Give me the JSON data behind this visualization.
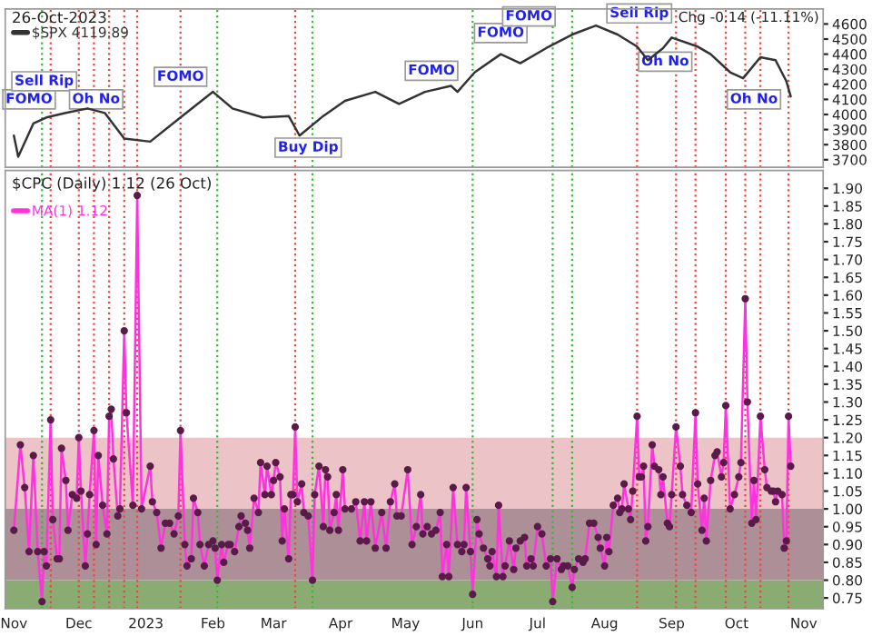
{
  "chart_data": [
    {
      "type": "line",
      "title": "26-Oct-2023",
      "subtitle": "Chg -0.14 (-11.11%)",
      "legend": "top left",
      "tick_labels": "y",
      "xlim": [
        "2022-10-28",
        "2023-11-10"
      ],
      "ylim": [
        3650,
        4700
      ],
      "yticks": [
        3700,
        3800,
        3900,
        4000,
        4100,
        4200,
        4300,
        4400,
        4500,
        4600
      ],
      "series": [
        {
          "name": "$SPX 4119.89",
          "color": "#333333",
          "x": [
            "2022-11-01",
            "2022-11-03",
            "2022-11-10",
            "2022-11-16",
            "2022-11-25",
            "2022-12-05",
            "2022-12-13",
            "2022-12-22",
            "2023-01-03",
            "2023-01-17",
            "2023-02-01",
            "2023-02-10",
            "2023-02-24",
            "2023-03-08",
            "2023-03-13",
            "2023-03-24",
            "2023-04-03",
            "2023-04-17",
            "2023-04-28",
            "2023-05-10",
            "2023-05-22",
            "2023-05-25",
            "2023-06-02",
            "2023-06-14",
            "2023-06-23",
            "2023-07-05",
            "2023-07-17",
            "2023-07-28",
            "2023-08-07",
            "2023-08-16",
            "2023-08-21",
            "2023-08-28",
            "2023-09-01",
            "2023-09-13",
            "2023-09-19",
            "2023-09-28",
            "2023-10-04",
            "2023-10-12",
            "2023-10-19",
            "2023-10-24",
            "2023-10-26"
          ],
          "values": [
            3860,
            3720,
            3940,
            3980,
            4010,
            4040,
            4010,
            3840,
            3820,
            3980,
            4150,
            4040,
            3980,
            3990,
            3860,
            3990,
            4090,
            4150,
            4070,
            4150,
            4190,
            4150,
            4280,
            4400,
            4340,
            4440,
            4530,
            4590,
            4530,
            4450,
            4360,
            4440,
            4510,
            4450,
            4400,
            4280,
            4240,
            4380,
            4360,
            4220,
            4119.89
          ]
        }
      ],
      "annotations": [
        {
          "text": "FOMO",
          "x": "2022-11-08",
          "y": 4100
        },
        {
          "text": "Sell Rip",
          "x": "2022-11-15",
          "y": 4220
        },
        {
          "text": "Oh No",
          "x": "2022-12-09",
          "y": 4100
        },
        {
          "text": "FOMO",
          "x": "2023-01-17",
          "y": 4250
        },
        {
          "text": "Buy Dip",
          "x": "2023-03-17",
          "y": 3780
        },
        {
          "text": "FOMO",
          "x": "2023-05-13",
          "y": 4290
        },
        {
          "text": "FOMO",
          "x": "2023-06-14",
          "y": 4540
        },
        {
          "text": "FOMO",
          "x": "2023-06-27",
          "y": 4650
        },
        {
          "text": "Sell Rip",
          "x": "2023-08-17",
          "y": 4670
        },
        {
          "text": "Oh No",
          "x": "2023-08-29",
          "y": 4350
        },
        {
          "text": "Oh No",
          "x": "2023-10-09",
          "y": 4100
        }
      ],
      "ref_lines": [
        {
          "axis": "x",
          "value": "2022-11-14",
          "color": "#33bb33",
          "line_style": "dotted"
        },
        {
          "axis": "x",
          "value": "2022-11-18",
          "color": "#ee4444",
          "line_style": "dotted"
        },
        {
          "axis": "x",
          "value": "2022-12-01",
          "color": "#ee4444",
          "line_style": "dotted"
        },
        {
          "axis": "x",
          "value": "2022-12-08",
          "color": "#ee4444",
          "line_style": "dotted"
        },
        {
          "axis": "x",
          "value": "2022-12-15",
          "color": "#ee4444",
          "line_style": "dotted"
        },
        {
          "axis": "x",
          "value": "2022-12-22",
          "color": "#ee4444",
          "line_style": "dotted"
        },
        {
          "axis": "x",
          "value": "2022-12-28",
          "color": "#ee4444",
          "line_style": "dotted"
        },
        {
          "axis": "x",
          "value": "2023-01-17",
          "color": "#ee4444",
          "line_style": "dotted"
        },
        {
          "axis": "x",
          "value": "2023-02-03",
          "color": "#33bb33",
          "line_style": "dotted"
        },
        {
          "axis": "x",
          "value": "2023-03-11",
          "color": "#ee4444",
          "line_style": "dotted"
        },
        {
          "axis": "x",
          "value": "2023-03-19",
          "color": "#33bb33",
          "line_style": "dotted"
        },
        {
          "axis": "x",
          "value": "2023-06-01",
          "color": "#33bb33",
          "line_style": "dotted"
        },
        {
          "axis": "x",
          "value": "2023-07-08",
          "color": "#33bb33",
          "line_style": "dotted"
        },
        {
          "axis": "x",
          "value": "2023-07-17",
          "color": "#33bb33",
          "line_style": "dotted"
        },
        {
          "axis": "x",
          "value": "2023-08-16",
          "color": "#ee4444",
          "line_style": "dotted"
        },
        {
          "axis": "x",
          "value": "2023-09-03",
          "color": "#ee4444",
          "line_style": "dotted"
        },
        {
          "axis": "x",
          "value": "2023-09-12",
          "color": "#ee4444",
          "line_style": "dotted"
        },
        {
          "axis": "x",
          "value": "2023-09-26",
          "color": "#ee4444",
          "line_style": "dotted"
        },
        {
          "axis": "x",
          "value": "2023-10-05",
          "color": "#ee4444",
          "line_style": "dotted"
        },
        {
          "axis": "x",
          "value": "2023-10-12",
          "color": "#ee4444",
          "line_style": "dotted"
        },
        {
          "axis": "x",
          "value": "2023-10-25",
          "color": "#ee4444",
          "line_style": "dotted"
        }
      ]
    },
    {
      "type": "line",
      "title": "$CPC (Daily) 1.12 (26 Oct)",
      "legend": "top left",
      "marker": "circle",
      "xlim": [
        "2022-10-28",
        "2023-11-10"
      ],
      "ylim": [
        0.72,
        1.95
      ],
      "xticks": [
        {
          "value": "2022-11-01",
          "label": "Nov"
        },
        {
          "value": "2022-12-01",
          "label": "Dec"
        },
        {
          "value": "2023-01-01",
          "label": "2023"
        },
        {
          "value": "2023-02-01",
          "label": "Feb"
        },
        {
          "value": "2023-03-01",
          "label": "Mar"
        },
        {
          "value": "2023-04-01",
          "label": "Apr"
        },
        {
          "value": "2023-05-01",
          "label": "May"
        },
        {
          "value": "2023-06-01",
          "label": "Jun"
        },
        {
          "value": "2023-07-01",
          "label": "Jul"
        },
        {
          "value": "2023-08-01",
          "label": "Aug"
        },
        {
          "value": "2023-09-01",
          "label": "Sep"
        },
        {
          "value": "2023-10-01",
          "label": "Oct"
        },
        {
          "value": "2023-11-01",
          "label": "Nov"
        }
      ],
      "yticks": [
        {
          "value": 0.75,
          "label": "0.75"
        },
        {
          "value": 0.8,
          "label": "0.80"
        },
        {
          "value": 0.85,
          "label": "0.85"
        },
        {
          "value": 0.9,
          "label": "0.90"
        },
        {
          "value": 0.95,
          "label": "0.95"
        },
        {
          "value": 1.0,
          "label": "1.00"
        },
        {
          "value": 1.05,
          "label": "1.05"
        },
        {
          "value": 1.1,
          "label": "1.10"
        },
        {
          "value": 1.15,
          "label": "1.15"
        },
        {
          "value": 1.2,
          "label": "1.20"
        },
        {
          "value": 1.25,
          "label": "1.25"
        },
        {
          "value": 1.3,
          "label": "1.30"
        },
        {
          "value": 1.35,
          "label": "1.35"
        },
        {
          "value": 1.4,
          "label": "1.40"
        },
        {
          "value": 1.45,
          "label": "1.45"
        },
        {
          "value": 1.5,
          "label": "1.50"
        },
        {
          "value": 1.55,
          "label": "1.55"
        },
        {
          "value": 1.6,
          "label": "1.60"
        },
        {
          "value": 1.65,
          "label": "1.65"
        },
        {
          "value": 1.7,
          "label": "1.70"
        },
        {
          "value": 1.75,
          "label": "1.75"
        },
        {
          "value": 1.8,
          "label": "1.80"
        },
        {
          "value": 1.85,
          "label": "1.85"
        },
        {
          "value": 1.9,
          "label": "1.90"
        }
      ],
      "bands": [
        {
          "axis": "y",
          "from": 0.72,
          "to": 0.8,
          "color": "#8aab72"
        },
        {
          "axis": "y",
          "from": 0.8,
          "to": 1.0,
          "color": "#ad9097"
        },
        {
          "axis": "y",
          "from": 1.0,
          "to": 1.2,
          "color": "#ecc3c7"
        }
      ],
      "series": [
        {
          "name": "MA(1) 1.12",
          "color": "#ff33dd",
          "x": [
            "2022-11-01",
            "2022-11-04",
            "2022-11-06",
            "2022-11-08",
            "2022-11-10",
            "2022-11-12",
            "2022-11-14",
            "2022-11-15",
            "2022-11-16",
            "2022-11-18",
            "2022-11-19",
            "2022-11-21",
            "2022-11-22",
            "2022-11-23",
            "2022-11-25",
            "2022-11-26",
            "2022-11-28",
            "2022-11-30",
            "2022-12-01",
            "2022-12-02",
            "2022-12-04",
            "2022-12-05",
            "2022-12-06",
            "2022-12-08",
            "2022-12-09",
            "2022-12-10",
            "2022-12-12",
            "2022-12-14",
            "2022-12-15",
            "2022-12-16",
            "2022-12-17",
            "2022-12-19",
            "2022-12-20",
            "2022-12-22",
            "2022-12-23",
            "2022-12-26",
            "2022-12-28",
            "2022-12-30",
            "2023-01-03",
            "2023-01-04",
            "2023-01-06",
            "2023-01-08",
            "2023-01-10",
            "2023-01-12",
            "2023-01-14",
            "2023-01-16",
            "2023-01-17",
            "2023-01-19",
            "2023-01-20",
            "2023-01-22",
            "2023-01-23",
            "2023-01-25",
            "2023-01-26",
            "2023-01-28",
            "2023-01-30",
            "2023-02-01",
            "2023-02-02",
            "2023-02-03",
            "2023-02-05",
            "2023-02-06",
            "2023-02-08",
            "2023-02-09",
            "2023-02-11",
            "2023-02-13",
            "2023-02-14",
            "2023-02-16",
            "2023-02-17",
            "2023-02-18",
            "2023-02-20",
            "2023-02-22",
            "2023-02-23",
            "2023-02-25",
            "2023-02-26",
            "2023-02-28",
            "2023-03-01",
            "2023-03-02",
            "2023-03-04",
            "2023-03-05",
            "2023-03-06",
            "2023-03-08",
            "2023-03-09",
            "2023-03-10",
            "2023-03-11",
            "2023-03-12",
            "2023-03-14",
            "2023-03-15",
            "2023-03-17",
            "2023-03-19",
            "2023-03-20",
            "2023-03-22",
            "2023-03-24",
            "2023-03-25",
            "2023-03-26",
            "2023-03-27",
            "2023-03-29",
            "2023-03-30",
            "2023-03-31",
            "2023-04-02",
            "2023-04-03",
            "2023-04-06",
            "2023-04-08",
            "2023-04-10",
            "2023-04-12",
            "2023-04-13",
            "2023-04-15",
            "2023-04-17",
            "2023-04-20",
            "2023-04-22",
            "2023-04-24",
            "2023-04-26",
            "2023-04-27",
            "2023-04-29",
            "2023-05-02",
            "2023-05-04",
            "2023-05-06",
            "2023-05-08",
            "2023-05-09",
            "2023-05-11",
            "2023-05-13",
            "2023-05-15",
            "2023-05-17",
            "2023-05-18",
            "2023-05-20",
            "2023-05-21",
            "2023-05-23",
            "2023-05-25",
            "2023-05-27",
            "2023-05-28",
            "2023-05-29",
            "2023-05-31",
            "2023-06-01",
            "2023-06-03",
            "2023-06-04",
            "2023-06-06",
            "2023-06-08",
            "2023-06-09",
            "2023-06-10",
            "2023-06-12",
            "2023-06-13",
            "2023-06-15",
            "2023-06-16",
            "2023-06-18",
            "2023-06-20",
            "2023-06-21",
            "2023-06-23",
            "2023-06-25",
            "2023-06-26",
            "2023-06-28",
            "2023-06-29",
            "2023-07-01",
            "2023-07-03",
            "2023-07-05",
            "2023-07-07",
            "2023-07-08",
            "2023-07-10",
            "2023-07-12",
            "2023-07-13",
            "2023-07-15",
            "2023-07-17",
            "2023-07-18",
            "2023-07-20",
            "2023-07-22",
            "2023-07-23",
            "2023-07-25",
            "2023-07-27",
            "2023-07-29",
            "2023-07-30",
            "2023-08-01",
            "2023-08-02",
            "2023-08-03",
            "2023-08-05",
            "2023-08-07",
            "2023-08-08",
            "2023-08-09",
            "2023-08-10",
            "2023-08-12",
            "2023-08-13",
            "2023-08-14",
            "2023-08-16",
            "2023-08-17",
            "2023-08-18",
            "2023-08-19",
            "2023-08-20",
            "2023-08-21",
            "2023-08-23",
            "2023-08-24",
            "2023-08-26",
            "2023-08-27",
            "2023-08-28",
            "2023-08-30",
            "2023-08-31",
            "2023-09-01",
            "2023-09-03",
            "2023-09-05",
            "2023-09-06",
            "2023-09-08",
            "2023-09-10",
            "2023-09-12",
            "2023-09-13",
            "2023-09-15",
            "2023-09-16",
            "2023-09-17",
            "2023-09-19",
            "2023-09-21",
            "2023-09-22",
            "2023-09-24",
            "2023-09-25",
            "2023-09-26",
            "2023-09-28",
            "2023-09-30",
            "2023-10-02",
            "2023-10-03",
            "2023-10-05",
            "2023-10-06",
            "2023-10-08",
            "2023-10-09",
            "2023-10-10",
            "2023-10-12",
            "2023-10-14",
            "2023-10-15",
            "2023-10-17",
            "2023-10-18",
            "2023-10-19",
            "2023-10-20",
            "2023-10-22",
            "2023-10-23",
            "2023-10-24",
            "2023-10-25",
            "2023-10-26"
          ],
          "values": [
            0.94,
            1.18,
            1.06,
            0.88,
            1.15,
            0.88,
            0.74,
            0.88,
            0.84,
            1.25,
            0.97,
            0.86,
            0.86,
            1.17,
            1.08,
            0.94,
            1.04,
            1.03,
            1.2,
            1.05,
            0.84,
            0.93,
            1.04,
            1.22,
            0.9,
            1.15,
            1.01,
            0.93,
            1.26,
            1.28,
            1.14,
            0.98,
            1.0,
            1.5,
            1.27,
            1.01,
            1.88,
            1.0,
            1.12,
            1.02,
            0.99,
            0.89,
            0.96,
            0.96,
            0.93,
            0.98,
            1.22,
            0.9,
            0.84,
            0.86,
            1.03,
            0.99,
            0.9,
            0.84,
            0.9,
            0.91,
            0.89,
            0.8,
            0.9,
            0.85,
            0.9,
            0.9,
            0.88,
            0.95,
            0.98,
            0.96,
            0.94,
            0.89,
            1.03,
            0.99,
            1.13,
            1.04,
            1.12,
            1.04,
            1.08,
            1.13,
            1.09,
            0.91,
            1.0,
            0.86,
            1.04,
            1.04,
            1.23,
            1.02,
            1.07,
            0.99,
            0.98,
            0.8,
            1.04,
            1.12,
            0.95,
            1.11,
            1.09,
            0.94,
            0.99,
            1.04,
            0.94,
            1.11,
            1.0,
            1.0,
            1.02,
            0.91,
            1.02,
            0.91,
            1.02,
            0.89,
            0.99,
            0.89,
            1.02,
            1.07,
            0.98,
            0.98,
            1.11,
            0.9,
            0.95,
            1.04,
            0.93,
            0.95,
            0.93,
            0.94,
            0.99,
            0.81,
            0.9,
            0.81,
            1.06,
            0.9,
            0.88,
            0.9,
            1.06,
            0.88,
            0.76,
            0.97,
            0.93,
            0.89,
            0.86,
            0.84,
            0.88,
            0.81,
            1.01,
            0.81,
            0.84,
            0.91,
            0.83,
            0.89,
            0.91,
            0.92,
            0.84,
            0.86,
            0.84,
            0.95,
            0.93,
            0.84,
            0.86,
            0.74,
            0.86,
            0.83,
            0.84,
            0.84,
            0.78,
            0.83,
            0.86,
            0.85,
            0.86,
            0.96,
            0.96,
            0.92,
            0.89,
            0.84,
            0.92,
            0.88,
            1.01,
            1.03,
            0.99,
            1.0,
            1.07,
            1.0,
            0.97,
            1.05,
            1.26,
            1.09,
            1.09,
            1.12,
            0.91,
            0.95,
            1.18,
            1.12,
            1.11,
            1.04,
            1.09,
            0.96,
            0.95,
            1.04,
            1.23,
            1.12,
            1.04,
            1.01,
            0.99,
            1.27,
            1.07,
            0.94,
            1.03,
            0.91,
            1.08,
            1.15,
            1.16,
            1.09,
            1.13,
            1.29,
            1.0,
            1.04,
            1.09,
            1.13,
            1.59,
            1.3,
            0.96,
            1.08,
            0.97,
            1.26,
            1.11,
            1.06,
            1.05,
            1.05,
            1.02,
            1.05,
            1.04,
            0.89,
            0.91,
            1.26,
            1.12
          ]
        }
      ],
      "ref_lines": [
        {
          "axis": "x",
          "value": "2022-11-14",
          "color": "#33bb33",
          "line_style": "dotted"
        },
        {
          "axis": "x",
          "value": "2022-11-18",
          "color": "#ee4444",
          "line_style": "dotted"
        },
        {
          "axis": "x",
          "value": "2022-12-01",
          "color": "#ee4444",
          "line_style": "dotted"
        },
        {
          "axis": "x",
          "value": "2022-12-08",
          "color": "#ee4444",
          "line_style": "dotted"
        },
        {
          "axis": "x",
          "value": "2022-12-15",
          "color": "#ee4444",
          "line_style": "dotted"
        },
        {
          "axis": "x",
          "value": "2022-12-22",
          "color": "#ee4444",
          "line_style": "dotted"
        },
        {
          "axis": "x",
          "value": "2022-12-28",
          "color": "#ee4444",
          "line_style": "dotted"
        },
        {
          "axis": "x",
          "value": "2023-01-17",
          "color": "#ee4444",
          "line_style": "dotted"
        },
        {
          "axis": "x",
          "value": "2023-02-03",
          "color": "#33bb33",
          "line_style": "dotted"
        },
        {
          "axis": "x",
          "value": "2023-03-11",
          "color": "#ee4444",
          "line_style": "dotted"
        },
        {
          "axis": "x",
          "value": "2023-03-19",
          "color": "#33bb33",
          "line_style": "dotted"
        },
        {
          "axis": "x",
          "value": "2023-06-01",
          "color": "#33bb33",
          "line_style": "dotted"
        },
        {
          "axis": "x",
          "value": "2023-07-08",
          "color": "#33bb33",
          "line_style": "dotted"
        },
        {
          "axis": "x",
          "value": "2023-07-17",
          "color": "#33bb33",
          "line_style": "dotted"
        },
        {
          "axis": "x",
          "value": "2023-08-16",
          "color": "#ee4444",
          "line_style": "dotted"
        },
        {
          "axis": "x",
          "value": "2023-09-03",
          "color": "#ee4444",
          "line_style": "dotted"
        },
        {
          "axis": "x",
          "value": "2023-09-12",
          "color": "#ee4444",
          "line_style": "dotted"
        },
        {
          "axis": "x",
          "value": "2023-09-26",
          "color": "#ee4444",
          "line_style": "dotted"
        },
        {
          "axis": "x",
          "value": "2023-10-05",
          "color": "#ee4444",
          "line_style": "dotted"
        },
        {
          "axis": "x",
          "value": "2023-10-12",
          "color": "#ee4444",
          "line_style": "dotted"
        },
        {
          "axis": "x",
          "value": "2023-10-25",
          "color": "#ee4444",
          "line_style": "dotted"
        }
      ]
    }
  ]
}
